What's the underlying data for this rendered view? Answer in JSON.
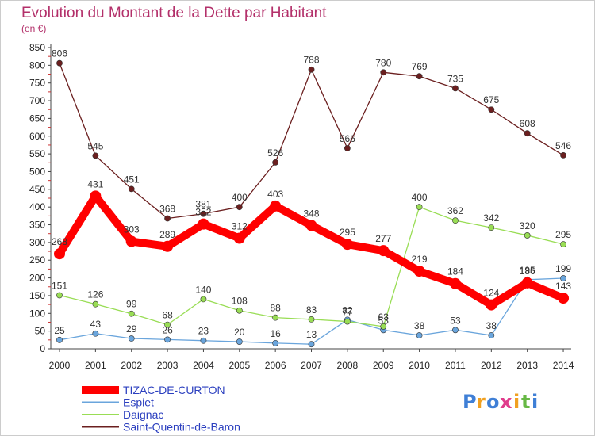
{
  "chart_data": {
    "type": "line",
    "title": "Evolution du Montant de la Dette par Habitant",
    "subtitle": "(en €)",
    "x": [
      "2000",
      "2001",
      "2002",
      "2003",
      "2004",
      "2005",
      "2006",
      "2007",
      "2008",
      "2009",
      "2010",
      "2011",
      "2012",
      "2013",
      "2014"
    ],
    "ylim": [
      0,
      850
    ],
    "yticks": [
      0,
      50,
      100,
      150,
      200,
      250,
      300,
      350,
      400,
      450,
      500,
      550,
      600,
      650,
      700,
      750,
      800,
      850
    ],
    "grid": false,
    "legend_position": "bottom-left",
    "series": [
      {
        "name": "TIZAC-DE-CURTON",
        "color": "#ff0000",
        "values": [
          268,
          431,
          303,
          289,
          352,
          312,
          403,
          348,
          295,
          277,
          219,
          184,
          124,
          186,
          143
        ]
      },
      {
        "name": "Espiet",
        "color": "#6aa5dc",
        "values": [
          25,
          43,
          29,
          26,
          23,
          20,
          16,
          13,
          82,
          53,
          38,
          53,
          38,
          195,
          199
        ]
      },
      {
        "name": "Daignac",
        "color": "#99dd55",
        "values": [
          151,
          126,
          99,
          68,
          140,
          108,
          88,
          83,
          77,
          63,
          400,
          362,
          342,
          320,
          295
        ]
      },
      {
        "name": "Saint-Quentin-de-Baron",
        "color": "#6b1f1f",
        "values": [
          806,
          545,
          451,
          368,
          381,
          400,
          526,
          788,
          566,
          780,
          769,
          735,
          675,
          608,
          546
        ]
      }
    ]
  },
  "brand": {
    "letters": [
      "P",
      "r",
      "o",
      "x",
      "i",
      "t",
      "i"
    ],
    "colors": [
      "#3f7fd6",
      "#f0a020",
      "#3f7fd6",
      "#e03c8c",
      "#f0a020",
      "#67b845",
      "#3f7fd6"
    ]
  }
}
